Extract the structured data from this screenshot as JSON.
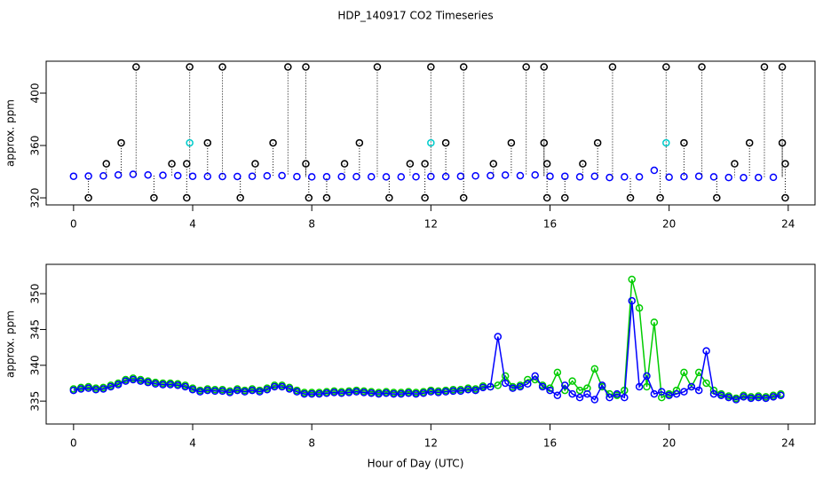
{
  "chart_data": [
    {
      "type": "scatter",
      "title": "HDP_140917  CO2 Timeseries",
      "ylabel": "approx. ppm",
      "xlim": [
        -0.92,
        24.9
      ],
      "xticks": [
        0,
        4,
        8,
        12,
        16,
        20,
        24
      ],
      "ylim": [
        314.6,
        424.4
      ],
      "yticks": [
        320,
        360,
        400
      ],
      "series": [
        {
          "color": "#0000ff",
          "x": [
            0,
            0.5,
            1,
            1.5,
            2,
            2.5,
            3,
            3.5,
            4,
            4.5,
            5,
            5.5,
            6,
            6.5,
            7,
            7.5,
            8,
            8.5,
            9,
            9.5,
            10,
            10.5,
            11,
            11.5,
            12,
            12.5,
            13,
            13.5,
            14,
            14.5,
            15,
            15.5,
            16,
            16.5,
            17,
            17.5,
            18,
            18.5,
            19,
            19.5,
            20,
            20.5,
            21,
            21.5,
            22,
            22.5,
            23,
            23.5
          ],
          "values": [
            336.5,
            336.6,
            336.8,
            337.5,
            338.0,
            337.5,
            337.2,
            337.0,
            336.5,
            336.4,
            336.3,
            336.3,
            336.5,
            336.8,
            337.0,
            336.2,
            336.0,
            336.1,
            336.2,
            336.2,
            336.1,
            336.0,
            336.0,
            336.1,
            336.3,
            336.3,
            336.5,
            336.8,
            337.0,
            337.4,
            337.0,
            337.5,
            336.5,
            336.5,
            336.0,
            336.5,
            335.5,
            336.0,
            336.0,
            341.0,
            335.8,
            336.2,
            336.5,
            336.0,
            335.5,
            335.4,
            335.5,
            335.7
          ]
        },
        {
          "color": "#000000",
          "droplines": true,
          "x": [
            2.1,
            3.9,
            5.0,
            7.2,
            7.8,
            10.2,
            12.0,
            13.1,
            15.2,
            15.8,
            18.1,
            19.9,
            21.1,
            23.2,
            23.8,
            1.6,
            4.5,
            6.7,
            9.6,
            12.5,
            14.7,
            15.8,
            17.6,
            20.5,
            22.7,
            23.8,
            1.1,
            3.3,
            3.8,
            6.1,
            7.8,
            9.1,
            11.3,
            11.8,
            14.1,
            15.9,
            17.1,
            22.2,
            23.9,
            0.5,
            2.7,
            3.8,
            5.6,
            7.9,
            8.5,
            10.6,
            11.8,
            13.1,
            15.9,
            16.5,
            18.7,
            19.7,
            21.6,
            23.9
          ],
          "values": [
            420,
            420,
            420,
            420,
            420,
            420,
            420,
            420,
            420,
            420,
            420,
            420,
            420,
            420,
            420,
            362,
            362,
            362,
            362,
            362,
            362,
            362,
            362,
            362,
            362,
            362,
            346,
            346,
            346,
            346,
            346,
            346,
            346,
            346,
            346,
            346,
            346,
            346,
            346,
            320,
            320,
            320,
            320,
            320,
            320,
            320,
            320,
            320,
            320,
            320,
            320,
            320,
            320,
            320
          ]
        },
        {
          "color": "#00cccc",
          "x": [
            3.9,
            12.0,
            19.9
          ],
          "values": [
            362,
            362,
            362
          ]
        }
      ]
    },
    {
      "type": "scatter",
      "ylabel": "approx. ppm",
      "xlabel": "Hour of Day (UTC)",
      "xlim": [
        -0.92,
        24.9
      ],
      "xticks": [
        0,
        4,
        8,
        12,
        16,
        20,
        24
      ],
      "ylim": [
        331.8,
        354.1
      ],
      "yticks": [
        335,
        340,
        345,
        350
      ],
      "x": [
        0,
        0.25,
        0.5,
        0.75,
        1,
        1.25,
        1.5,
        1.75,
        2,
        2.25,
        2.5,
        2.75,
        3,
        3.25,
        3.5,
        3.75,
        4,
        4.25,
        4.5,
        4.75,
        5,
        5.25,
        5.5,
        5.75,
        6,
        6.25,
        6.5,
        6.75,
        7,
        7.25,
        7.5,
        7.75,
        8,
        8.25,
        8.5,
        8.75,
        9,
        9.25,
        9.5,
        9.75,
        10,
        10.25,
        10.5,
        10.75,
        11,
        11.25,
        11.5,
        11.75,
        12,
        12.25,
        12.5,
        12.75,
        13,
        13.25,
        13.5,
        13.75,
        14,
        14.25,
        14.5,
        14.75,
        15,
        15.25,
        15.5,
        15.75,
        16,
        16.25,
        16.5,
        16.75,
        17,
        17.25,
        17.5,
        17.75,
        18,
        18.25,
        18.5,
        18.75,
        19,
        19.25,
        19.5,
        19.75,
        20,
        20.25,
        20.5,
        20.75,
        21,
        21.25,
        21.5,
        21.75,
        22,
        22.25,
        22.5,
        22.75,
        23,
        23.25,
        23.5,
        23.75
      ],
      "series": [
        {
          "color": "#00cc00",
          "line": true,
          "values": [
            336.7,
            336.9,
            337.0,
            336.8,
            336.9,
            337.2,
            337.5,
            338.0,
            338.2,
            338.0,
            337.8,
            337.6,
            337.5,
            337.5,
            337.4,
            337.2,
            336.8,
            336.5,
            336.7,
            336.6,
            336.6,
            336.4,
            336.7,
            336.5,
            336.7,
            336.5,
            336.8,
            337.2,
            337.2,
            336.9,
            336.5,
            336.2,
            336.2,
            336.2,
            336.3,
            336.4,
            336.3,
            336.4,
            336.5,
            336.4,
            336.3,
            336.2,
            336.3,
            336.2,
            336.2,
            336.3,
            336.2,
            336.3,
            336.5,
            336.4,
            336.5,
            336.6,
            336.6,
            336.8,
            336.7,
            337.1,
            337.0,
            337.2,
            338.5,
            337.0,
            337.2,
            338.0,
            338.0,
            337.2,
            336.8,
            339.0,
            336.5,
            337.8,
            336.5,
            336.8,
            339.5,
            337.0,
            336.0,
            335.8,
            336.5,
            352.0,
            348.0,
            337.0,
            346.0,
            335.5,
            336.0,
            336.5,
            339.0,
            337.0,
            339.0,
            337.5,
            336.5,
            336.0,
            335.7,
            335.4,
            335.8,
            335.6,
            335.7,
            335.6,
            335.8,
            336.0
          ]
        },
        {
          "color": "#0000ff",
          "line": true,
          "values": [
            336.5,
            336.7,
            336.8,
            336.6,
            336.7,
            337.0,
            337.3,
            337.8,
            338.0,
            337.8,
            337.6,
            337.4,
            337.3,
            337.3,
            337.2,
            337.0,
            336.6,
            336.3,
            336.5,
            336.4,
            336.4,
            336.2,
            336.5,
            336.3,
            336.5,
            336.3,
            336.6,
            337.0,
            337.0,
            336.7,
            336.3,
            336.0,
            336.0,
            336.0,
            336.1,
            336.2,
            336.1,
            336.2,
            336.3,
            336.2,
            336.1,
            336.0,
            336.1,
            336.0,
            336.0,
            336.1,
            336.0,
            336.1,
            336.3,
            336.2,
            336.3,
            336.4,
            336.4,
            336.6,
            336.5,
            336.9,
            337.0,
            344.0,
            337.5,
            336.8,
            337.0,
            337.4,
            338.5,
            337.0,
            336.5,
            335.8,
            337.2,
            336.0,
            335.5,
            336.0,
            335.2,
            337.2,
            335.5,
            336.0,
            335.5,
            349.0,
            337.0,
            338.5,
            336.0,
            336.3,
            335.8,
            336.0,
            336.3,
            337.0,
            336.5,
            342.0,
            336.0,
            335.8,
            335.5,
            335.2,
            335.6,
            335.4,
            335.5,
            335.4,
            335.6,
            335.8
          ]
        }
      ]
    }
  ]
}
